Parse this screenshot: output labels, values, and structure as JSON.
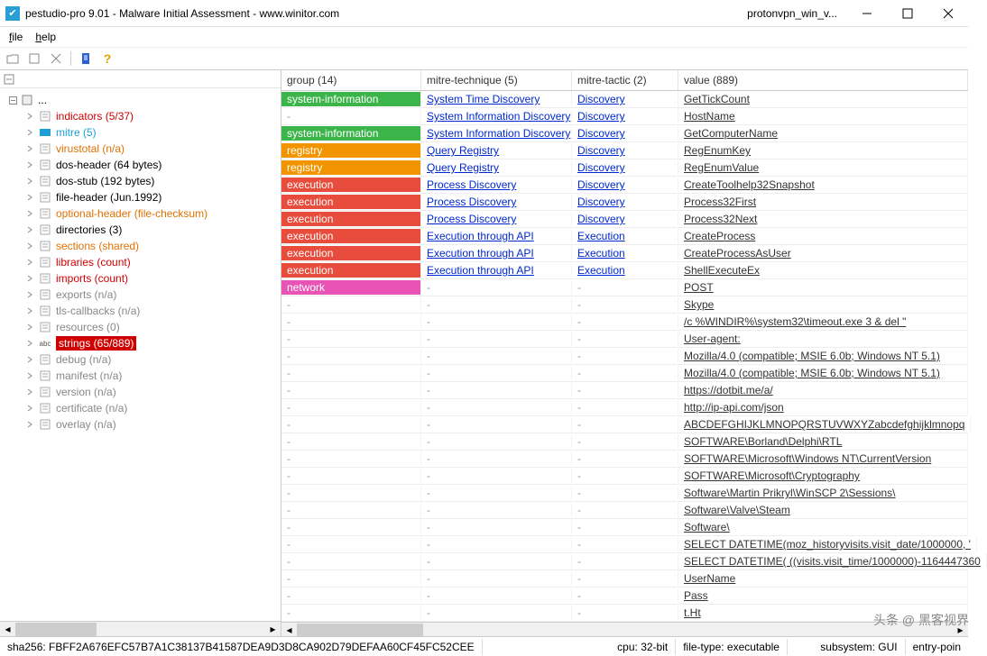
{
  "window": {
    "title": "pestudio-pro 9.01 - Malware Initial Assessment - www.winitor.com",
    "document": "protonvpn_win_v..."
  },
  "menu": {
    "file": "file",
    "help": "help"
  },
  "tree": [
    {
      "label": "...",
      "root": true
    },
    {
      "label": "indicators (5/37)",
      "cls": "red"
    },
    {
      "label": "mitre (5)",
      "cls": "blue"
    },
    {
      "label": "virustotal (n/a)",
      "cls": "orange"
    },
    {
      "label": "dos-header (64 bytes)"
    },
    {
      "label": "dos-stub (192 bytes)"
    },
    {
      "label": "file-header (Jun.1992)"
    },
    {
      "label": "optional-header (file-checksum)",
      "cls": "orange"
    },
    {
      "label": "directories (3)"
    },
    {
      "label": "sections (shared)",
      "cls": "orange"
    },
    {
      "label": "libraries (count)",
      "cls": "red"
    },
    {
      "label": "imports (count)",
      "cls": "red"
    },
    {
      "label": "exports (n/a)",
      "cls": "gray"
    },
    {
      "label": "tls-callbacks (n/a)",
      "cls": "gray"
    },
    {
      "label": "resources (0)",
      "cls": "gray"
    },
    {
      "label": "strings (65/889)",
      "cls": "sel"
    },
    {
      "label": "debug (n/a)",
      "cls": "gray"
    },
    {
      "label": "manifest (n/a)",
      "cls": "gray"
    },
    {
      "label": "version (n/a)",
      "cls": "gray"
    },
    {
      "label": "certificate (n/a)",
      "cls": "gray"
    },
    {
      "label": "overlay (n/a)",
      "cls": "gray"
    }
  ],
  "columns": {
    "group": "group (14)",
    "technique": "mitre-technique (5)",
    "tactic": "mitre-tactic (2)",
    "value": "value (889)"
  },
  "rows": [
    {
      "group": "system-information",
      "group_bg": "green",
      "tech": "System Time Discovery",
      "tac": "Discovery",
      "val": "GetTickCount"
    },
    {
      "group": "-",
      "tech": "System Information Discovery",
      "tac": "Discovery",
      "val": "HostName"
    },
    {
      "group": "system-information",
      "group_bg": "green",
      "tech": "System Information Discovery",
      "tac": "Discovery",
      "val": "GetComputerName"
    },
    {
      "group": "registry",
      "group_bg": "orange",
      "tech": "Query Registry",
      "tac": "Discovery",
      "val": "RegEnumKey"
    },
    {
      "group": "registry",
      "group_bg": "orange",
      "tech": "Query Registry",
      "tac": "Discovery",
      "val": "RegEnumValue"
    },
    {
      "group": "execution",
      "group_bg": "red",
      "tech": "Process Discovery",
      "tac": "Discovery",
      "val": "CreateToolhelp32Snapshot"
    },
    {
      "group": "execution",
      "group_bg": "red",
      "tech": "Process Discovery",
      "tac": "Discovery",
      "val": "Process32First"
    },
    {
      "group": "execution",
      "group_bg": "red",
      "tech": "Process Discovery",
      "tac": "Discovery",
      "val": "Process32Next"
    },
    {
      "group": "execution",
      "group_bg": "red",
      "tech": "Execution through API",
      "tac": "Execution",
      "val": "CreateProcess"
    },
    {
      "group": "execution",
      "group_bg": "red",
      "tech": "Execution through API",
      "tac": "Execution",
      "val": "CreateProcessAsUser"
    },
    {
      "group": "execution",
      "group_bg": "red",
      "tech": "Execution through API",
      "tac": "Execution",
      "val": "ShellExecuteEx"
    },
    {
      "group": "network",
      "group_bg": "pink",
      "tech": "-",
      "tac": "-",
      "val": "POST"
    },
    {
      "group": "-",
      "tech": "-",
      "tac": "-",
      "val": "Skype"
    },
    {
      "group": "-",
      "tech": "-",
      "tac": "-",
      "val": "/c %WINDIR%\\system32\\timeout.exe 3 & del \""
    },
    {
      "group": "-",
      "tech": "-",
      "tac": "-",
      "val": "User-agent:"
    },
    {
      "group": "-",
      "tech": "-",
      "tac": "-",
      "val": "Mozilla/4.0 (compatible; MSIE 6.0b; Windows NT 5.1)"
    },
    {
      "group": "-",
      "tech": "-",
      "tac": "-",
      "val": "Mozilla/4.0 (compatible; MSIE 6.0b; Windows NT 5.1)"
    },
    {
      "group": "-",
      "tech": "-",
      "tac": "-",
      "val": "https://dotbit.me/a/"
    },
    {
      "group": "-",
      "tech": "-",
      "tac": "-",
      "val": "http://ip-api.com/json"
    },
    {
      "group": "-",
      "tech": "-",
      "tac": "-",
      "val": "ABCDEFGHIJKLMNOPQRSTUVWXYZabcdefghijklmnopq"
    },
    {
      "group": "-",
      "tech": "-",
      "tac": "-",
      "val": "SOFTWARE\\Borland\\Delphi\\RTL"
    },
    {
      "group": "-",
      "tech": "-",
      "tac": "-",
      "val": "SOFTWARE\\Microsoft\\Windows NT\\CurrentVersion"
    },
    {
      "group": "-",
      "tech": "-",
      "tac": "-",
      "val": "SOFTWARE\\Microsoft\\Cryptography"
    },
    {
      "group": "-",
      "tech": "-",
      "tac": "-",
      "val": "Software\\Martin Prikryl\\WinSCP 2\\Sessions\\"
    },
    {
      "group": "-",
      "tech": "-",
      "tac": "-",
      "val": "Software\\Valve\\Steam"
    },
    {
      "group": "-",
      "tech": "-",
      "tac": "-",
      "val": "Software\\"
    },
    {
      "group": "-",
      "tech": "-",
      "tac": "-",
      "val": "SELECT DATETIME(moz_historyvisits.visit_date/1000000, '"
    },
    {
      "group": "-",
      "tech": "-",
      "tac": "-",
      "val": "SELECT DATETIME( ((visits.visit_time/1000000)-1164447360"
    },
    {
      "group": "-",
      "tech": "-",
      "tac": "-",
      "val": "UserName"
    },
    {
      "group": "-",
      "tech": "-",
      "tac": "-",
      "val": "Pass"
    },
    {
      "group": "-",
      "tech": "-",
      "tac": "-",
      "val": "t.Ht"
    }
  ],
  "status": {
    "sha256": "sha256: FBFF2A676EFC57B7A1C38137B41587DEA9D3D8CA902D79DEFAA60CF45FC52CEE",
    "cpu": "cpu: 32-bit",
    "filetype": "file-type: executable",
    "subsystem": "subsystem: GUI",
    "entry": "entry-poin"
  },
  "watermark": "头条 @ 黑客视界",
  "colors": {
    "green": "#3bb54a",
    "orange": "#f29400",
    "red": "#e74c3c",
    "pink": "#e754b5",
    "link": "#0028d0",
    "tree_red": "#d00000",
    "tree_blue": "#1a9fd6",
    "tree_orange": "#e07000",
    "tree_gray": "#888888"
  }
}
